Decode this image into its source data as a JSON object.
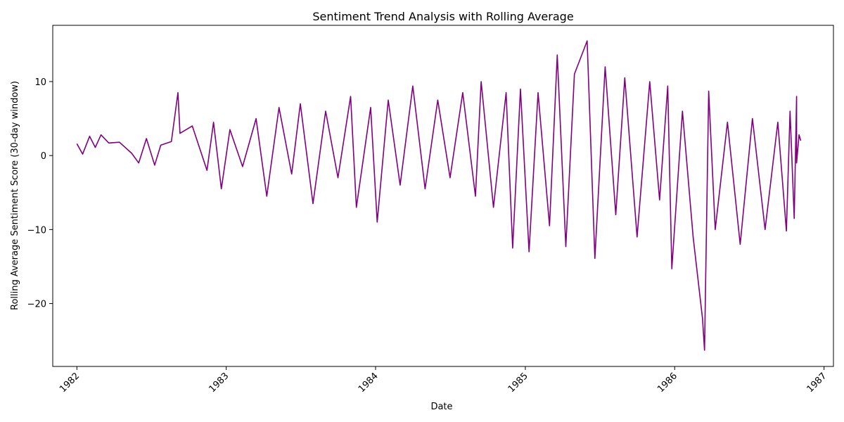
{
  "chart_data": {
    "type": "line",
    "title": "Sentiment Trend Analysis with Rolling Average",
    "xlabel": "Date",
    "ylabel": "Rolling Average Sentiment Score (30-day window)",
    "xlim": [
      "1981-11-03",
      "1987-01-24"
    ],
    "ylim": [
      -28.5,
      17.6
    ],
    "x_ticks": [
      "1982",
      "1983",
      "1984",
      "1985",
      "1986",
      "1987"
    ],
    "y_ticks": [
      -20,
      -10,
      0,
      10
    ],
    "grid": false,
    "legend": "none",
    "line_color": "#800080",
    "series": [
      {
        "name": "",
        "points": [
          [
            "1982-01-01",
            1.6
          ],
          [
            "1982-01-15",
            0.2
          ],
          [
            "1982-02-01",
            2.6
          ],
          [
            "1982-02-15",
            1.1
          ],
          [
            "1982-03-01",
            2.8
          ],
          [
            "1982-03-20",
            1.7
          ],
          [
            "1982-04-15",
            1.8
          ],
          [
            "1982-05-15",
            0.3
          ],
          [
            "1982-06-01",
            -1.0
          ],
          [
            "1982-06-20",
            2.3
          ],
          [
            "1982-07-10",
            -1.3
          ],
          [
            "1982-07-25",
            1.4
          ],
          [
            "1982-08-20",
            1.9
          ],
          [
            "1982-09-05",
            8.5
          ],
          [
            "1982-09-10",
            3.0
          ],
          [
            "1982-10-10",
            4.0
          ],
          [
            "1982-11-15",
            -2.0
          ],
          [
            "1982-12-01",
            4.5
          ],
          [
            "1982-12-20",
            -4.5
          ],
          [
            "1983-01-10",
            3.5
          ],
          [
            "1983-02-10",
            -1.5
          ],
          [
            "1983-03-15",
            5.0
          ],
          [
            "1983-04-10",
            -5.5
          ],
          [
            "1983-05-10",
            6.5
          ],
          [
            "1983-06-10",
            -2.5
          ],
          [
            "1983-07-01",
            7.0
          ],
          [
            "1983-08-01",
            -6.5
          ],
          [
            "1983-09-01",
            6.0
          ],
          [
            "1983-10-01",
            -3.0
          ],
          [
            "1983-11-01",
            8.0
          ],
          [
            "1983-11-15",
            -7.0
          ],
          [
            "1983-12-20",
            6.5
          ],
          [
            "1984-01-05",
            -9.0
          ],
          [
            "1984-02-01",
            7.5
          ],
          [
            "1984-03-01",
            -4.0
          ],
          [
            "1984-04-01",
            9.4
          ],
          [
            "1984-05-01",
            -4.5
          ],
          [
            "1984-06-01",
            7.5
          ],
          [
            "1984-07-01",
            -3.0
          ],
          [
            "1984-08-01",
            8.5
          ],
          [
            "1984-09-01",
            -5.5
          ],
          [
            "1984-09-15",
            10.0
          ],
          [
            "1984-10-15",
            -7.0
          ],
          [
            "1984-11-15",
            8.5
          ],
          [
            "1984-12-01",
            -12.5
          ],
          [
            "1984-12-20",
            9.0
          ],
          [
            "1985-01-10",
            -13.0
          ],
          [
            "1985-02-01",
            8.5
          ],
          [
            "1985-03-01",
            -9.5
          ],
          [
            "1985-03-20",
            13.6
          ],
          [
            "1985-04-10",
            -12.3
          ],
          [
            "1985-05-01",
            11.0
          ],
          [
            "1985-06-01",
            15.5
          ],
          [
            "1985-06-20",
            -13.9
          ],
          [
            "1985-07-15",
            12.0
          ],
          [
            "1985-08-10",
            -8.0
          ],
          [
            "1985-09-01",
            10.5
          ],
          [
            "1985-10-01",
            -11.0
          ],
          [
            "1985-11-01",
            10.0
          ],
          [
            "1985-11-25",
            -6.0
          ],
          [
            "1985-12-15",
            9.4
          ],
          [
            "1985-12-25",
            -15.3
          ],
          [
            "1986-01-20",
            6.0
          ],
          [
            "1986-02-15",
            -11.0
          ],
          [
            "1986-03-10",
            -22.0
          ],
          [
            "1986-03-15",
            -26.3
          ],
          [
            "1986-03-25",
            8.7
          ],
          [
            "1986-04-10",
            -10.0
          ],
          [
            "1986-05-10",
            4.5
          ],
          [
            "1986-06-10",
            -12.0
          ],
          [
            "1986-07-10",
            5.0
          ],
          [
            "1986-08-10",
            -10.0
          ],
          [
            "1986-09-10",
            4.5
          ],
          [
            "1986-10-01",
            -10.2
          ],
          [
            "1986-10-10",
            6.0
          ],
          [
            "1986-10-20",
            -8.5
          ],
          [
            "1986-10-26",
            8.0
          ],
          [
            "1986-10-26",
            -1.0
          ],
          [
            "1986-11-01",
            2.8
          ],
          [
            "1986-11-05",
            2.0
          ]
        ]
      }
    ]
  }
}
